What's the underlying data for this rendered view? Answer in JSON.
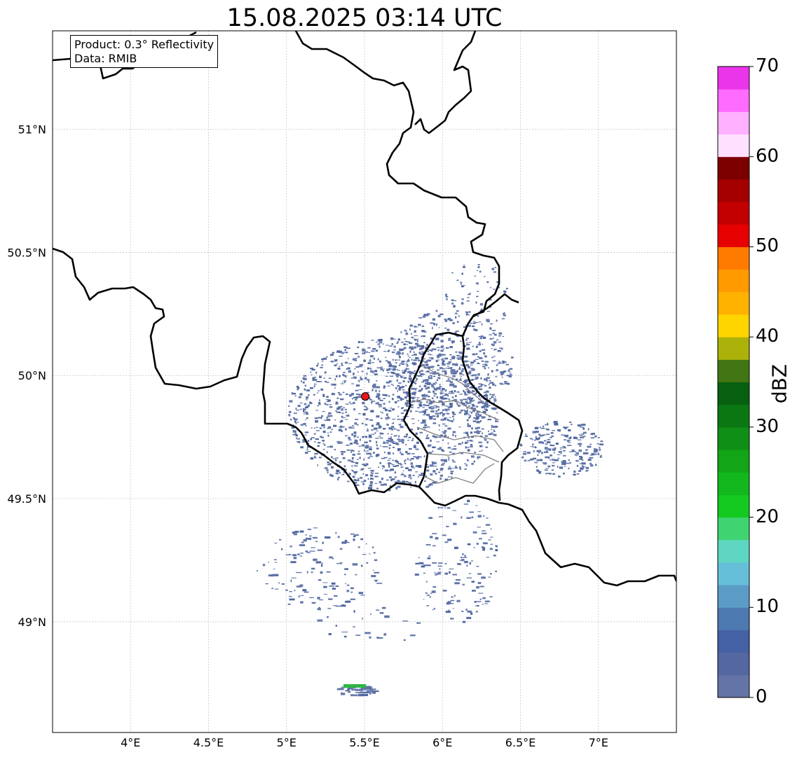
{
  "title": "15.08.2025 03:14 UTC",
  "info": {
    "product": "Product: 0.3° Reflectivity",
    "data": "Data: RMIB"
  },
  "map": {
    "lon_range": [
      3.5,
      7.5
    ],
    "lat_range": [
      48.55,
      51.4
    ],
    "lon_ticks": [
      "4°E",
      "4.5°E",
      "5°E",
      "5.5°E",
      "6°E",
      "6.5°E",
      "7°E"
    ],
    "lat_ticks": [
      "51°N",
      "50.5°N",
      "50°N",
      "49.5°N",
      "49°N"
    ],
    "radar_site": {
      "lon": 5.505,
      "lat": 49.915,
      "color": "#e8141a"
    },
    "gridlines": true
  },
  "colorbar": {
    "label": "dBZ",
    "min": 0,
    "max": 70,
    "tick_labels": [
      "0",
      "10",
      "20",
      "30",
      "40",
      "50",
      "60",
      "70"
    ],
    "step": 2.5,
    "colors": [
      "#6574a6",
      "#5567a0",
      "#4561a5",
      "#4d79b1",
      "#5b9cc7",
      "#65bfd9",
      "#5fd6c2",
      "#3fd372",
      "#14c920",
      "#12b81d",
      "#12a518",
      "#0f8f15",
      "#0b7712",
      "#06600f",
      "#427514",
      "#acb209",
      "#ffd500",
      "#ffb300",
      "#ff9a00",
      "#ff7b00",
      "#e60000",
      "#c30000",
      "#a50000",
      "#7d0000",
      "#ffe0ff",
      "#ffb0ff",
      "#ff6bff",
      "#ea35ea"
    ]
  }
}
